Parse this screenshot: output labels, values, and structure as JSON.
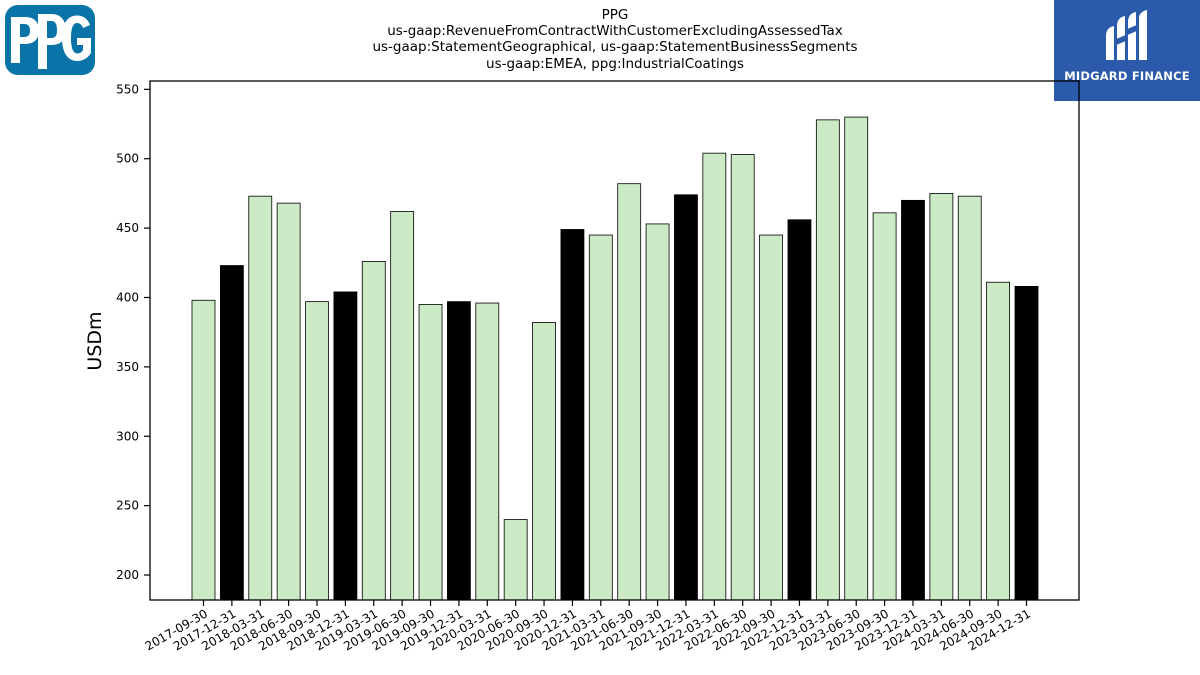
{
  "brand": {
    "left_logo_text": "PPG",
    "right_logo_text": "MIDGARD FINANCE",
    "ppg_color": "#0a73a8",
    "midgard_color": "#2c5aab"
  },
  "chart_data": {
    "type": "bar",
    "title_lines": [
      "PPG",
      "us-gaap:RevenueFromContractWithCustomerExcludingAssessedTax",
      "us-gaap:StatementGeographical, us-gaap:StatementBusinessSegments",
      "us-gaap:EMEA, ppg:IndustrialCoatings"
    ],
    "xlabel": "",
    "ylabel": "USDm",
    "ylim": [
      182,
      556
    ],
    "yticks": [
      200,
      250,
      300,
      350,
      400,
      450,
      500,
      550
    ],
    "grid": false,
    "categories": [
      "2017-09-30",
      "2017-12-31",
      "2018-03-31",
      "2018-06-30",
      "2018-09-30",
      "2018-12-31",
      "2019-03-31",
      "2019-06-30",
      "2019-09-30",
      "2019-12-31",
      "2020-03-31",
      "2020-06-30",
      "2020-09-30",
      "2020-12-31",
      "2021-03-31",
      "2021-06-30",
      "2021-09-30",
      "2021-12-31",
      "2022-03-31",
      "2022-06-30",
      "2022-09-30",
      "2022-12-31",
      "2023-03-31",
      "2023-06-30",
      "2023-09-30",
      "2023-12-31",
      "2024-03-31",
      "2024-06-30",
      "2024-09-30",
      "2024-12-31"
    ],
    "values": [
      398,
      423,
      473,
      468,
      397,
      404,
      426,
      462,
      395,
      397,
      396,
      240,
      382,
      449,
      445,
      482,
      453,
      474,
      504,
      503,
      445,
      456,
      528,
      530,
      461,
      470,
      475,
      473,
      411,
      408
    ],
    "colors": {
      "quarter": "#cdeac6",
      "year_end": "#000000",
      "edge": "#000000"
    }
  }
}
